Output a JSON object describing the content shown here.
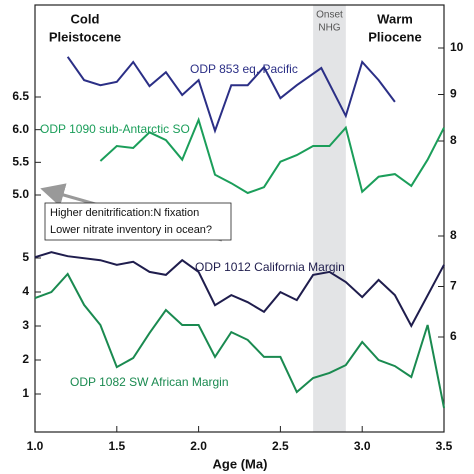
{
  "chart_data": [
    {
      "type": "line",
      "annotations": [
        [
          "Cold",
          "Pleistocene"
        ],
        [
          "Warm",
          "Pliocene"
        ]
      ],
      "highlight": {
        "range": [
          2.7,
          2.9
        ],
        "label": [
          "Onset",
          "NHG"
        ]
      },
      "ylim": [
        5.0,
        6.5
      ],
      "yticks": [
        6.5,
        {
          "value": 6.0,
          "label": "6.0"
        },
        5.5,
        {
          "value": 5.0,
          "label": "5.0"
        }
      ],
      "y2lim": [
        8,
        10
      ],
      "y2ticks": [
        8,
        9,
        10
      ],
      "series": [
        {
          "name": "ODP 853 eq. Pacific",
          "color": "#2b2f86",
          "axis": "y2",
          "x": [
            1.2,
            1.3,
            1.4,
            1.5,
            1.6,
            1.7,
            1.8,
            1.9,
            2.0,
            2.1,
            2.2,
            2.3,
            2.4,
            2.5,
            2.6,
            2.75,
            2.85,
            2.9,
            3.0,
            3.1,
            3.2
          ],
          "values": [
            9.81,
            9.31,
            9.2,
            9.27,
            9.7,
            9.18,
            9.48,
            8.99,
            9.31,
            8.22,
            9.2,
            9.2,
            9.59,
            8.92,
            9.2,
            9.57,
            8.88,
            8.54,
            9.7,
            9.31,
            8.84
          ]
        },
        {
          "name": "ODP 1090 sub-Antarctic SO",
          "color": "#1b9e5a",
          "axis": "y",
          "x": [
            1.4,
            1.5,
            1.6,
            1.65,
            1.7,
            1.8,
            1.9,
            2.0,
            2.1,
            2.2,
            2.3,
            2.4,
            2.5,
            2.6,
            2.7,
            2.8,
            2.9,
            3.0,
            3.1,
            3.2,
            3.3,
            3.4,
            3.5
          ],
          "values": [
            5.52,
            5.75,
            5.72,
            5.84,
            5.96,
            5.84,
            5.54,
            6.15,
            5.31,
            5.18,
            5.03,
            5.12,
            5.51,
            5.61,
            5.75,
            5.75,
            6.03,
            5.05,
            5.28,
            5.32,
            5.14,
            5.54,
            6.03
          ]
        }
      ]
    },
    {
      "type": "line",
      "note": [
        "Higher denitrification:N fixation",
        "Lower nitrate inventory in ocean?"
      ],
      "xlabel": "Age (Ma)",
      "xlim": [
        1.0,
        3.5
      ],
      "xticks": [
        {
          "value": 1.0,
          "label": "1.0"
        },
        1.5,
        {
          "value": 2.0,
          "label": "2.0"
        },
        2.5,
        {
          "value": 3.0,
          "label": "3.0"
        },
        3.5
      ],
      "ylim": [
        0,
        5
      ],
      "yticks": [
        1,
        2,
        3,
        4,
        5
      ],
      "y2lim": [
        6,
        8
      ],
      "y2ticks": [
        6,
        7,
        8
      ],
      "series": [
        {
          "name": "ODP 1012 California Margin",
          "color": "#1f1d4d",
          "axis": "y2",
          "x": [
            1.0,
            1.1,
            1.2,
            1.4,
            1.5,
            1.6,
            1.7,
            1.8,
            1.9,
            2.0,
            2.1,
            2.2,
            2.3,
            2.4,
            2.5,
            2.6,
            2.7,
            2.8,
            2.9,
            3.0,
            3.1,
            3.2,
            3.3,
            3.5
          ],
          "values": [
            7.58,
            7.68,
            7.6,
            7.52,
            7.43,
            7.49,
            7.29,
            7.23,
            7.52,
            7.29,
            6.63,
            6.83,
            6.69,
            6.5,
            6.89,
            6.73,
            7.23,
            7.29,
            7.09,
            6.79,
            7.13,
            6.83,
            6.22,
            7.43
          ]
        },
        {
          "name": "ODP 1082 SW African Margin",
          "color": "#1a8a50",
          "axis": "y",
          "x": [
            1.0,
            1.1,
            1.2,
            1.3,
            1.4,
            1.5,
            1.6,
            1.7,
            1.8,
            1.9,
            2.0,
            2.1,
            2.2,
            2.3,
            2.4,
            2.5,
            2.6,
            2.7,
            2.8,
            2.9,
            3.0,
            3.1,
            3.2,
            3.3,
            3.4,
            3.5
          ],
          "values": [
            3.82,
            4.0,
            4.53,
            3.62,
            3.03,
            1.79,
            2.06,
            2.79,
            3.47,
            3.03,
            3.03,
            2.09,
            2.82,
            2.59,
            2.09,
            2.09,
            1.06,
            1.47,
            1.62,
            1.85,
            2.53,
            2.0,
            1.82,
            1.5,
            3.03,
            0.59
          ]
        }
      ]
    }
  ]
}
